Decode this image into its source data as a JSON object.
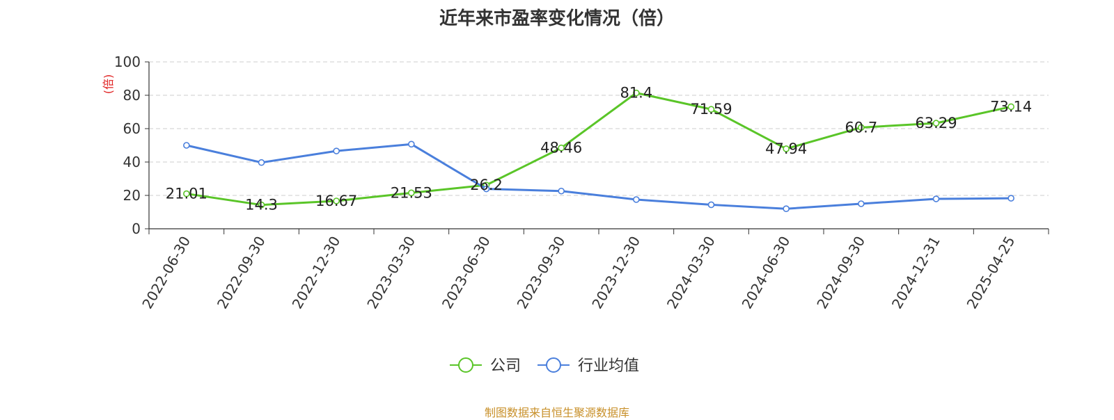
{
  "chart_data": {
    "type": "line",
    "title": "近年来市盈率变化情况（倍）",
    "ylabel": "(倍)",
    "ylim": [
      0,
      100
    ],
    "yticks": [
      0,
      20,
      40,
      60,
      80,
      100
    ],
    "grid": true,
    "legend_position": "bottom-center",
    "categories": [
      "2022-06-30",
      "2022-09-30",
      "2022-12-30",
      "2023-03-30",
      "2023-06-30",
      "2023-09-30",
      "2023-12-30",
      "2024-03-30",
      "2024-06-30",
      "2024-09-30",
      "2024-12-31",
      "2025-04-25"
    ],
    "series": [
      {
        "name": "公司",
        "color": "#5ac528",
        "show_labels": true,
        "values": [
          21.01,
          14.3,
          16.67,
          21.53,
          26.2,
          48.46,
          81.4,
          71.59,
          47.94,
          60.7,
          63.29,
          73.14
        ],
        "labels": [
          "21.01",
          "14.3",
          "16.67",
          "21.53",
          "26.2",
          "48.46",
          "81.4",
          "71.59",
          "47.94",
          "60.7",
          "63.29",
          "73.14"
        ]
      },
      {
        "name": "行业均值",
        "color": "#4a7fdc",
        "show_labels": false,
        "values": [
          50.0,
          39.7,
          46.6,
          50.7,
          23.9,
          22.6,
          17.5,
          14.4,
          12.0,
          15.0,
          17.9,
          18.3
        ]
      }
    ]
  },
  "footer": {
    "source": "制图数据来自恒生聚源数据库"
  }
}
